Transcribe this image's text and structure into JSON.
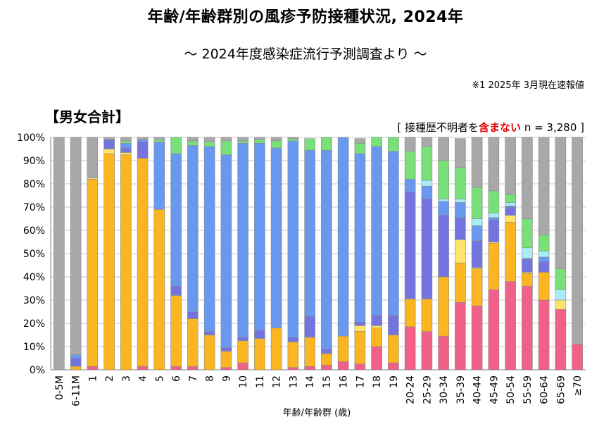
{
  "header": {
    "title": "年齢/年齢群別の風疹予防接種状況, 2024年",
    "subtitle": "〜 2024年度感染症流行予測調査より 〜",
    "note": "※1  2025年 3月現在速報値",
    "section_label": "【男女合計】",
    "sample_note_prefix": "[ 接種歴不明者を",
    "sample_note_emph": "含まない",
    "sample_note_suffix": " n = 3,280 ]"
  },
  "chart_data": {
    "type": "bar",
    "stacked": true,
    "title": "年齢/年齢群別の風疹予防接種状況, 2024年",
    "xlabel": "年齢/年齢群 (歳)",
    "ylabel": "",
    "ylim": [
      0,
      100
    ],
    "yticks": [
      "0%",
      "10%",
      "20%",
      "30%",
      "40%",
      "50%",
      "60%",
      "70%",
      "80%",
      "90%",
      "100%"
    ],
    "categories": [
      "0-5M",
      "6-11M",
      "1",
      "2",
      "3",
      "4",
      "5",
      "6",
      "7",
      "8",
      "9",
      "10",
      "11",
      "12",
      "13",
      "14",
      "15",
      "16",
      "17",
      "18",
      "19",
      "20-24",
      "25-29",
      "30-34",
      "35-39",
      "40-44",
      "45-49",
      "50-54",
      "55-59",
      "60-64",
      "65-69",
      "≥70"
    ],
    "series": [
      {
        "name": "segment-1",
        "color": "#f06088",
        "values": [
          0,
          0,
          1.5,
          0,
          0,
          1.5,
          0,
          1.5,
          1.5,
          0,
          1,
          3,
          0,
          0,
          1,
          1.5,
          2,
          3.5,
          2.5,
          10,
          3,
          18.5,
          16.5,
          14.5,
          29,
          27.5,
          34.5,
          38,
          36,
          30,
          26,
          11
        ]
      },
      {
        "name": "segment-2",
        "color": "#fbb520",
        "values": [
          0,
          1.5,
          80.5,
          93,
          92.5,
          89.5,
          69,
          30.5,
          20.5,
          15,
          7,
          9.5,
          13.5,
          18,
          11,
          12.5,
          5,
          11,
          14,
          8,
          12,
          12,
          14,
          25.5,
          17,
          16,
          20,
          25.5,
          5.5,
          12,
          0,
          0
        ]
      },
      {
        "name": "segment-3",
        "color": "#ffe468",
        "values": [
          0,
          0,
          0.5,
          2,
          1,
          0,
          0,
          0,
          0,
          0,
          0,
          0,
          0,
          0,
          0,
          0,
          0,
          0,
          2.5,
          1,
          0,
          0,
          0,
          0,
          10,
          0.5,
          0.5,
          3,
          0.5,
          0,
          4,
          0
        ]
      },
      {
        "name": "segment-4",
        "color": "#7474e0",
        "values": [
          0,
          3.5,
          0,
          4,
          2,
          7,
          0,
          4,
          3,
          1.5,
          1.5,
          1.5,
          3.5,
          0,
          2,
          9,
          2,
          0,
          1.5,
          4.5,
          8.5,
          46,
          43,
          26.5,
          9.5,
          11.5,
          9.5,
          3.5,
          5.5,
          4.5,
          0,
          0
        ]
      },
      {
        "name": "segment-5",
        "color": "#6898f0",
        "values": [
          0,
          1.5,
          0,
          0,
          2,
          1,
          29,
          57,
          71.5,
          79.5,
          83,
          83.5,
          80.5,
          77.5,
          84.5,
          71.5,
          85.5,
          85.5,
          72.5,
          72.5,
          70.5,
          5.5,
          5.5,
          6,
          6.5,
          6.5,
          1,
          0.5,
          0.5,
          2,
          0,
          0
        ]
      },
      {
        "name": "segment-6",
        "color": "#a8ecf8",
        "values": [
          0,
          0,
          0,
          0,
          0,
          0,
          0,
          0,
          0,
          0,
          0,
          0,
          0,
          0,
          0,
          0,
          0,
          0,
          0,
          0,
          0,
          0,
          2.5,
          1,
          1.5,
          3,
          2,
          1.5,
          4.5,
          2.5,
          4.5,
          0
        ]
      },
      {
        "name": "segment-7",
        "color": "#78e078",
        "values": [
          0,
          0,
          0,
          0,
          1,
          0,
          1,
          7,
          2,
          2,
          6,
          1,
          1.5,
          3,
          1,
          5,
          5.5,
          0,
          4.5,
          4,
          6,
          12,
          14.5,
          16.5,
          13.5,
          13.5,
          9.5,
          3.5,
          12.5,
          7,
          9,
          0
        ]
      },
      {
        "name": "segment-8",
        "color": "#a8a8a8",
        "values": [
          100,
          93.5,
          17.5,
          1,
          1.5,
          1,
          1,
          0,
          1.5,
          2,
          1.5,
          1.5,
          1,
          1.5,
          0.5,
          0,
          0,
          0,
          2,
          0,
          0,
          6,
          4,
          10,
          12.5,
          21.5,
          23,
          24.5,
          35,
          42,
          56.5,
          89
        ]
      }
    ]
  }
}
